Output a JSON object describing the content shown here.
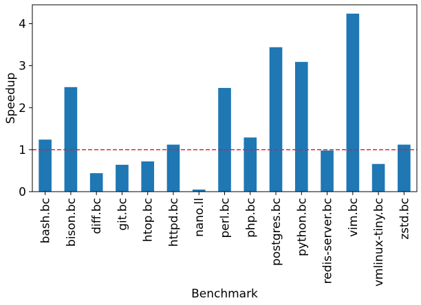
{
  "chart_data": {
    "type": "bar",
    "xlabel": "Benchmark",
    "ylabel": "Speedup",
    "categories": [
      "bash.bc",
      "bison.bc",
      "diff.bc",
      "git.bc",
      "htop.bc",
      "httpd.bc",
      "nano.ll",
      "perl.bc",
      "php.bc",
      "postgres.bc",
      "python.bc",
      "redis-server.bc",
      "vim.bc",
      "vmlinux-tiny.bc",
      "zstd.bc"
    ],
    "values": [
      1.24,
      2.49,
      0.44,
      0.64,
      0.72,
      1.12,
      0.05,
      2.47,
      1.29,
      3.44,
      3.09,
      0.98,
      4.24,
      0.66,
      1.12
    ],
    "ylim": [
      0,
      4.45
    ],
    "yticks": [
      0,
      1,
      2,
      3,
      4
    ],
    "reference_line": {
      "y": 1,
      "style": "dashed",
      "color": "#d62728"
    },
    "bar_color": "#1f77b4",
    "grid": false
  }
}
